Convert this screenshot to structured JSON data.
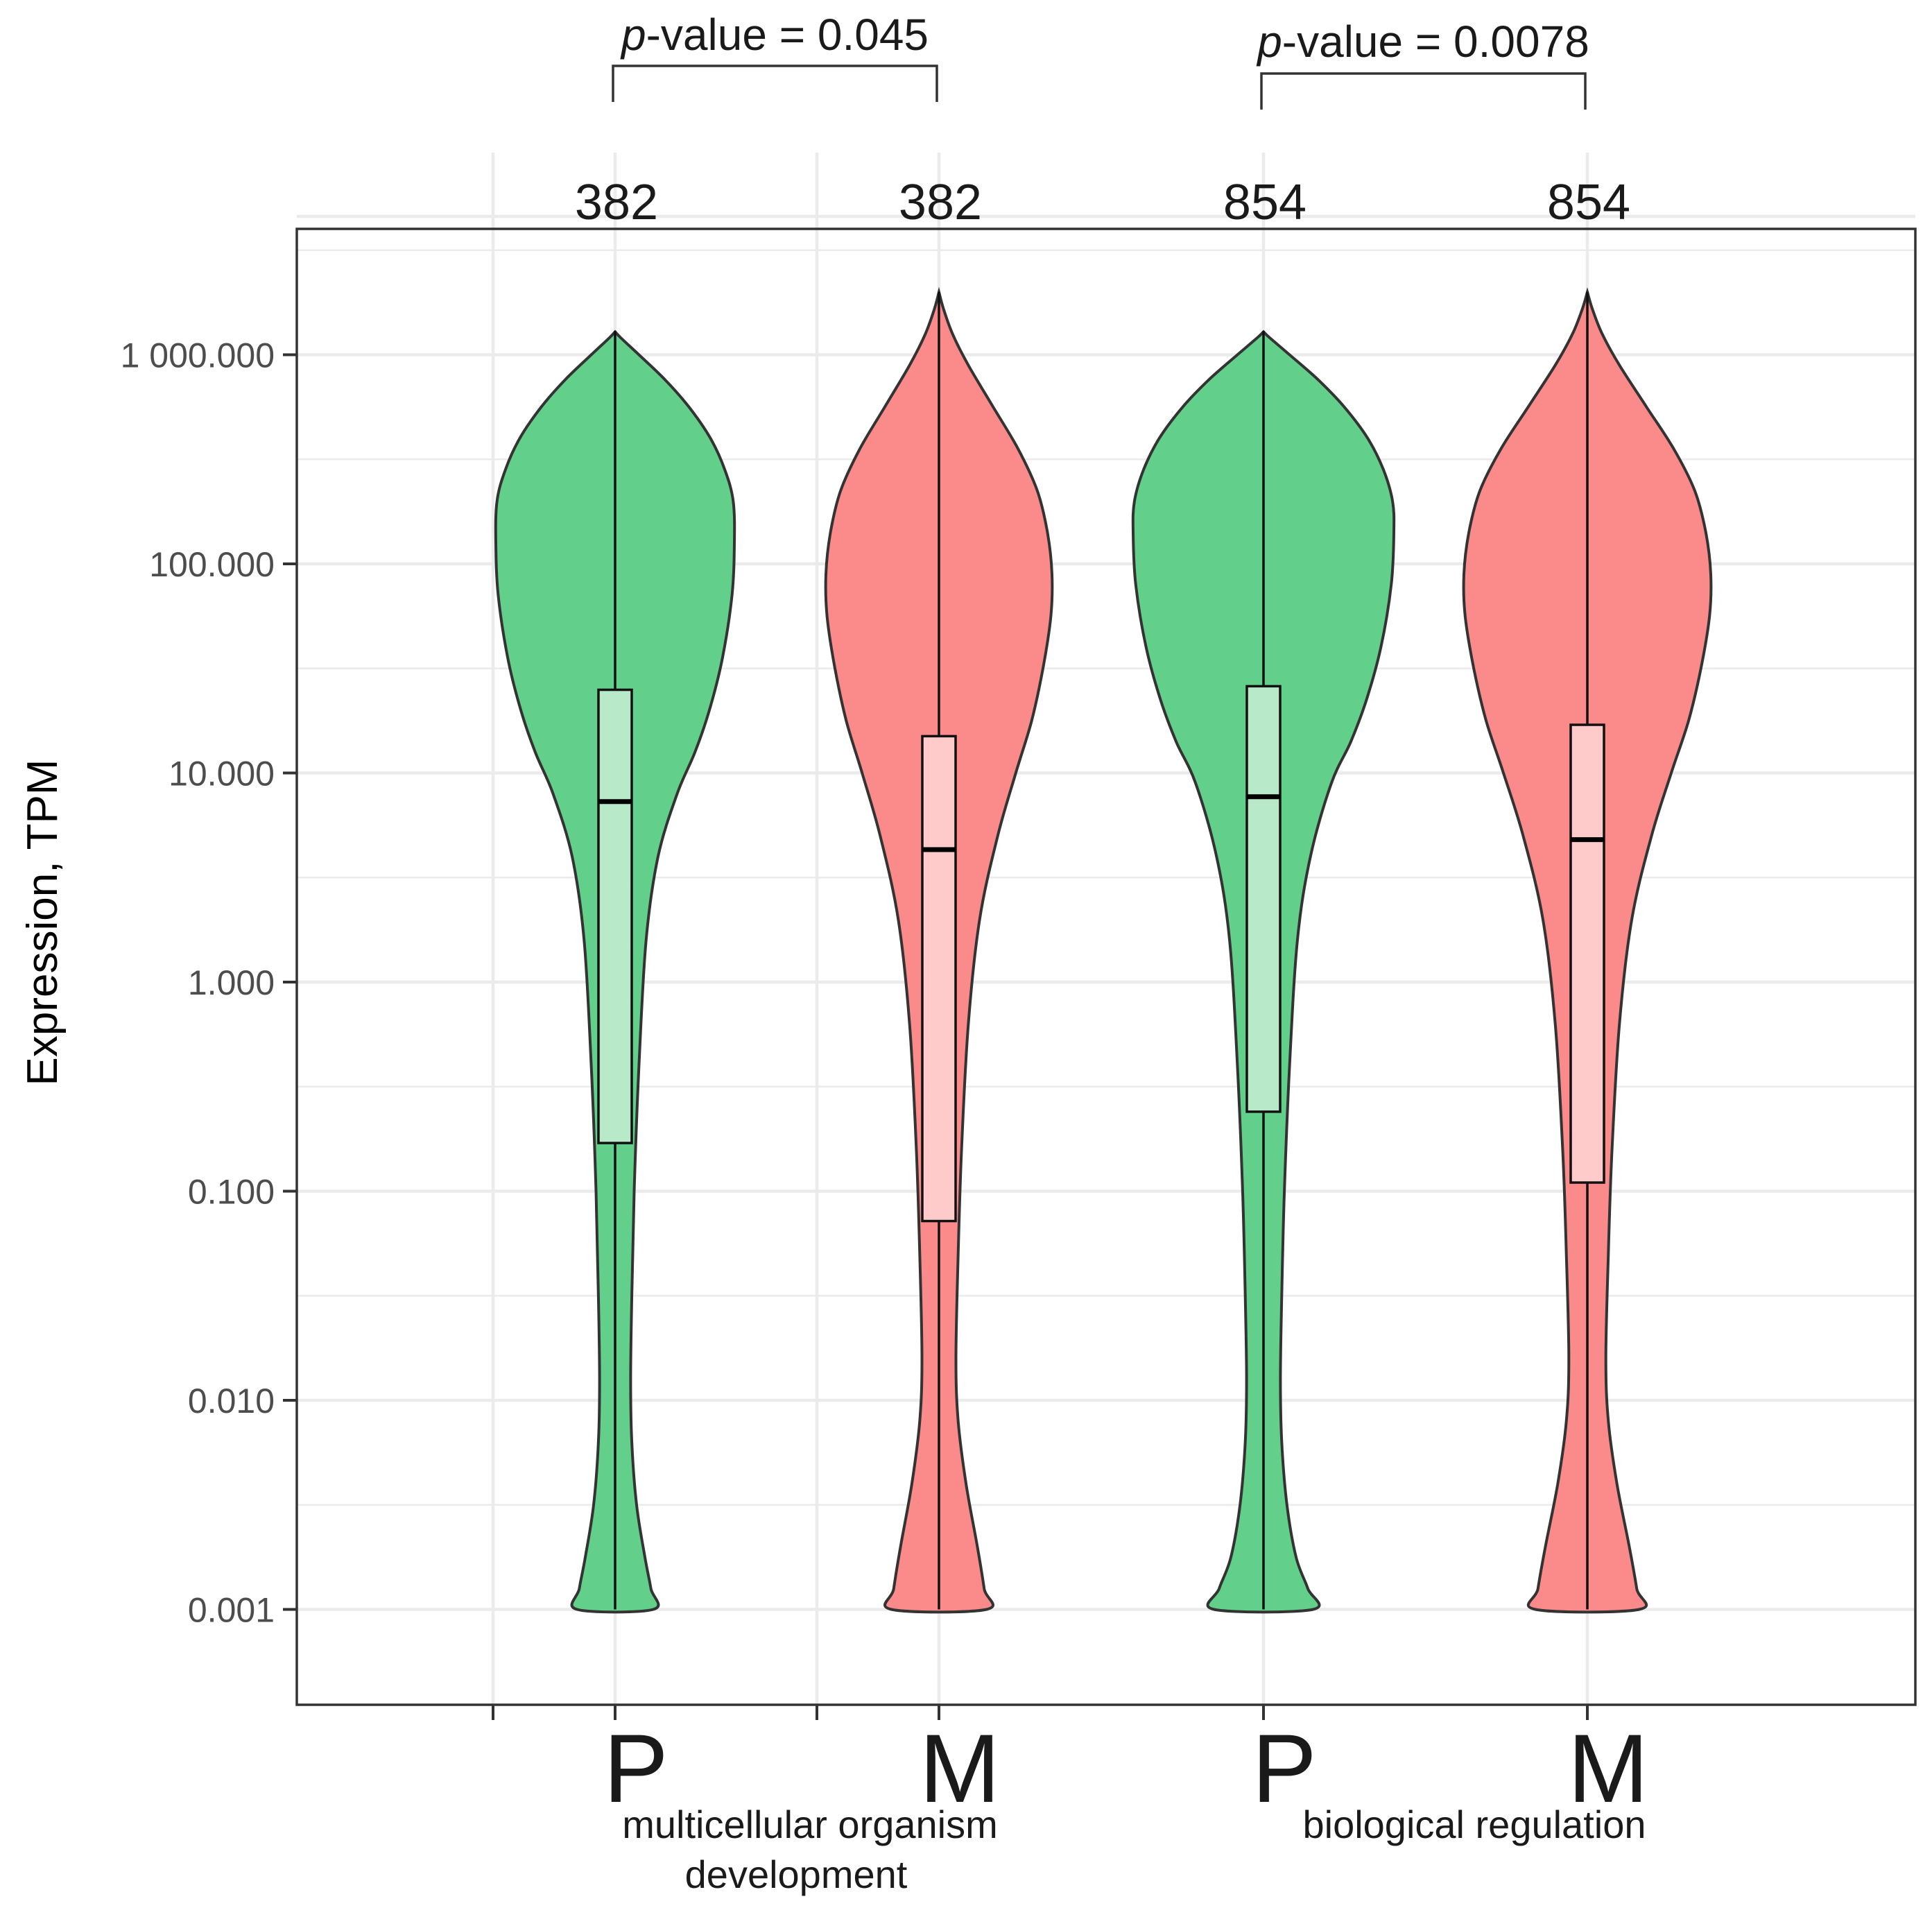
{
  "chart_data": {
    "type": "violin",
    "ylabel": "Expression, TPM",
    "yscale": "log10",
    "ylim": [
      0.00035,
      4000
    ],
    "yticks": [
      0.001,
      0.01,
      0.1,
      1,
      10,
      100,
      1000
    ],
    "ytick_labels": [
      "0.001",
      "0.010",
      "0.100",
      "1.000",
      "10.000",
      "100.000",
      "1 000.000"
    ],
    "series": [
      {
        "category": "P",
        "group": "multicellular organism development",
        "n": "382",
        "fill": "#62d08a",
        "box_fill": "#b8e9c9",
        "min": 0.001,
        "q1": 0.17,
        "median": 7.3,
        "q3": 25,
        "max": 1300,
        "density_profile": [
          [
            3.11,
            0.0
          ],
          [
            3.08,
            0.05
          ],
          [
            3.0,
            0.2
          ],
          [
            2.88,
            0.42
          ],
          [
            2.75,
            0.62
          ],
          [
            2.6,
            0.8
          ],
          [
            2.45,
            0.92
          ],
          [
            2.3,
            0.99
          ],
          [
            2.1,
            1.0
          ],
          [
            1.85,
            0.98
          ],
          [
            1.55,
            0.9
          ],
          [
            1.3,
            0.79
          ],
          [
            1.1,
            0.67
          ],
          [
            0.9,
            0.52
          ],
          [
            0.6,
            0.36
          ],
          [
            0.2,
            0.26
          ],
          [
            -0.4,
            0.2
          ],
          [
            -1.0,
            0.16
          ],
          [
            -1.5,
            0.14
          ],
          [
            -1.9,
            0.13
          ],
          [
            -2.2,
            0.14
          ],
          [
            -2.5,
            0.18
          ],
          [
            -2.75,
            0.25
          ],
          [
            -2.9,
            0.3
          ],
          [
            -3.0,
            0.32
          ]
        ]
      },
      {
        "category": "M",
        "group": "multicellular organism development",
        "n": "382",
        "fill": "#fb8a8a",
        "box_fill": "#fecaca",
        "min": 0.001,
        "q1": 0.072,
        "median": 4.3,
        "q3": 15,
        "max": 2000,
        "density_profile": [
          [
            3.3,
            0.0
          ],
          [
            3.22,
            0.04
          ],
          [
            3.1,
            0.12
          ],
          [
            2.95,
            0.26
          ],
          [
            2.75,
            0.48
          ],
          [
            2.55,
            0.7
          ],
          [
            2.35,
            0.87
          ],
          [
            2.15,
            0.96
          ],
          [
            1.95,
            1.0
          ],
          [
            1.75,
            0.99
          ],
          [
            1.5,
            0.92
          ],
          [
            1.25,
            0.82
          ],
          [
            1.0,
            0.68
          ],
          [
            0.7,
            0.52
          ],
          [
            0.3,
            0.36
          ],
          [
            -0.2,
            0.26
          ],
          [
            -0.8,
            0.2
          ],
          [
            -1.3,
            0.17
          ],
          [
            -1.8,
            0.15
          ],
          [
            -2.1,
            0.17
          ],
          [
            -2.4,
            0.24
          ],
          [
            -2.7,
            0.34
          ],
          [
            -2.9,
            0.4
          ],
          [
            -3.0,
            0.42
          ]
        ]
      },
      {
        "category": "P",
        "group": "biological regulation",
        "n": "854",
        "fill": "#62d08a",
        "box_fill": "#b8e9c9",
        "min": 0.001,
        "q1": 0.24,
        "median": 7.7,
        "q3": 26,
        "max": 1300,
        "density_profile": [
          [
            3.11,
            0.0
          ],
          [
            3.08,
            0.05
          ],
          [
            3.0,
            0.2
          ],
          [
            2.88,
            0.42
          ],
          [
            2.75,
            0.62
          ],
          [
            2.6,
            0.8
          ],
          [
            2.45,
            0.92
          ],
          [
            2.3,
            0.99
          ],
          [
            2.15,
            1.0
          ],
          [
            1.9,
            0.98
          ],
          [
            1.6,
            0.9
          ],
          [
            1.35,
            0.79
          ],
          [
            1.15,
            0.67
          ],
          [
            0.95,
            0.52
          ],
          [
            0.6,
            0.36
          ],
          [
            0.2,
            0.26
          ],
          [
            -0.4,
            0.2
          ],
          [
            -1.0,
            0.16
          ],
          [
            -1.5,
            0.14
          ],
          [
            -1.9,
            0.13
          ],
          [
            -2.2,
            0.14
          ],
          [
            -2.5,
            0.18
          ],
          [
            -2.75,
            0.25
          ],
          [
            -2.9,
            0.34
          ],
          [
            -3.0,
            0.38
          ]
        ]
      },
      {
        "category": "M",
        "group": "biological regulation",
        "n": "854",
        "fill": "#fb8a8a",
        "box_fill": "#fecaca",
        "min": 0.001,
        "q1": 0.11,
        "median": 4.8,
        "q3": 17,
        "max": 2000,
        "density_profile": [
          [
            3.3,
            0.0
          ],
          [
            3.22,
            0.04
          ],
          [
            3.1,
            0.12
          ],
          [
            2.95,
            0.26
          ],
          [
            2.75,
            0.48
          ],
          [
            2.55,
            0.7
          ],
          [
            2.35,
            0.87
          ],
          [
            2.15,
            0.96
          ],
          [
            1.95,
            1.0
          ],
          [
            1.75,
            0.99
          ],
          [
            1.5,
            0.92
          ],
          [
            1.25,
            0.82
          ],
          [
            1.0,
            0.68
          ],
          [
            0.7,
            0.52
          ],
          [
            0.3,
            0.36
          ],
          [
            -0.2,
            0.26
          ],
          [
            -0.8,
            0.2
          ],
          [
            -1.3,
            0.17
          ],
          [
            -1.8,
            0.15
          ],
          [
            -2.1,
            0.17
          ],
          [
            -2.4,
            0.24
          ],
          [
            -2.7,
            0.34
          ],
          [
            -2.9,
            0.4
          ],
          [
            -3.0,
            0.42
          ]
        ]
      }
    ],
    "groups": [
      {
        "label_line1": "multicellular organism",
        "label_line2": "development"
      },
      {
        "label_line1": "biological regulation",
        "label_line2": ""
      }
    ],
    "comparisons": [
      {
        "from": 0,
        "to": 1,
        "p_symbol": "p",
        "p_text": "-value = 0.045"
      },
      {
        "from": 2,
        "to": 3,
        "p_symbol": "p",
        "p_text": "-value = 0.0078"
      }
    ],
    "grid": true,
    "colors": {
      "line": "#333333",
      "grid": "#ebebeb",
      "frame": "#333333"
    }
  }
}
